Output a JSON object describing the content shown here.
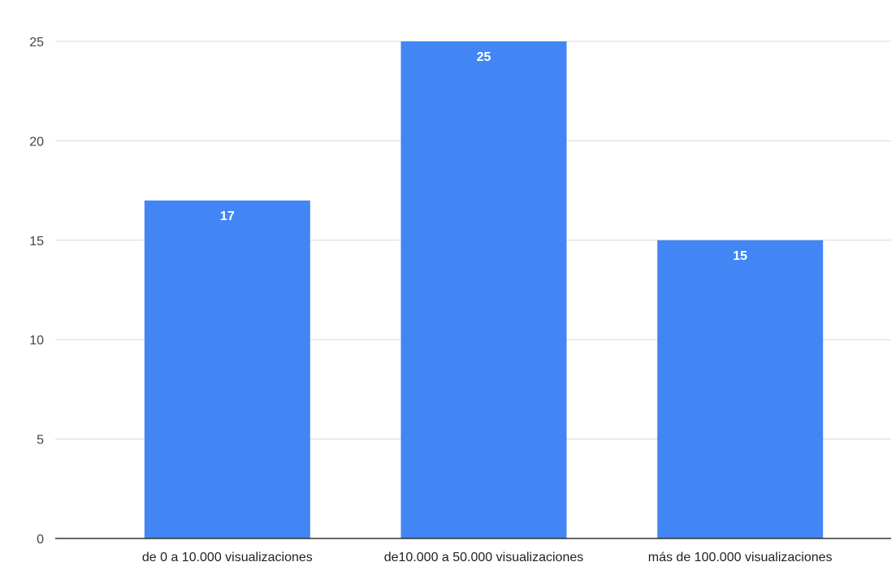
{
  "chart_data": {
    "type": "bar",
    "title": "",
    "xlabel": "",
    "ylabel": "",
    "categories": [
      "de 0 a 10.000 visualizaciones",
      "de10.000 a 50.000 visualizaciones",
      "más de 100.000 visualizaciones"
    ],
    "values": [
      17,
      25,
      15
    ],
    "ylim": [
      0,
      25
    ],
    "yticks": [
      0,
      5,
      10,
      15,
      20,
      25
    ],
    "grid": true,
    "legend": "none",
    "bar_color": "#4285f4",
    "data_label_color": "#ffffff",
    "data_labels": [
      "17",
      "25",
      "15"
    ]
  }
}
